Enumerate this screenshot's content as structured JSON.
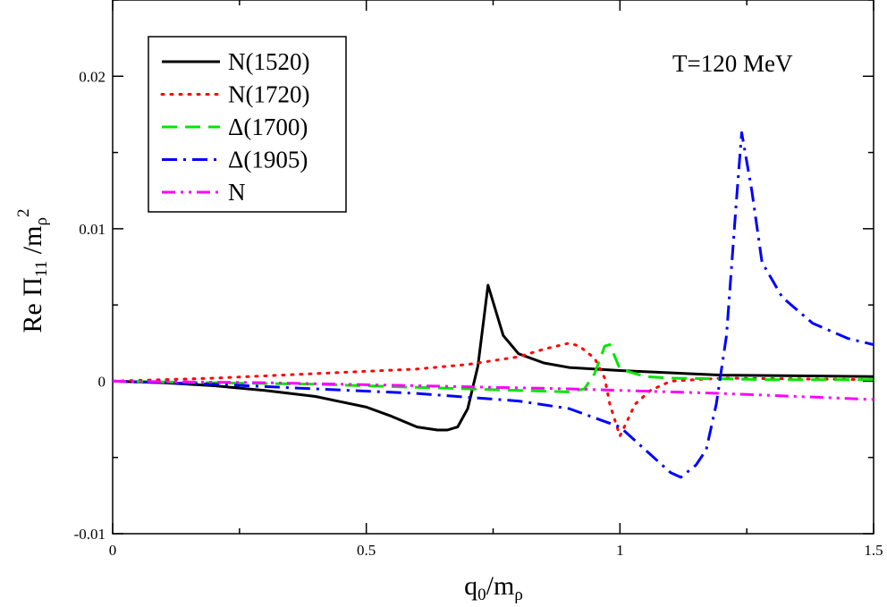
{
  "chart_data": {
    "type": "line",
    "title": "",
    "annotation": "T=120 MeV",
    "xlabel": {
      "base": "q",
      "sub1": "0",
      "mid": "/m",
      "sub2": "ρ"
    },
    "ylabel": {
      "base": "Re Π",
      "sub1": "11",
      "mid": " /m",
      "sub2": "ρ",
      "sup": "2"
    },
    "xlim": [
      0,
      1.5
    ],
    "ylim": [
      -0.01,
      0.025
    ],
    "x_ticks": [
      0,
      0.5,
      1,
      1.5
    ],
    "x_tick_labels": [
      "0",
      "0.5",
      "1",
      "1.5"
    ],
    "y_ticks": [
      -0.01,
      0,
      0.01,
      0.02
    ],
    "y_tick_labels": [
      "-0.01",
      "0",
      "0.01",
      "0.02"
    ],
    "legend_position": "top-left",
    "series": [
      {
        "name": "N(1520)",
        "color": "#000000",
        "dash": "solid",
        "points": [
          [
            0,
            0
          ],
          [
            0.1,
            -0.0001
          ],
          [
            0.2,
            -0.0003
          ],
          [
            0.3,
            -0.0006
          ],
          [
            0.4,
            -0.001
          ],
          [
            0.5,
            -0.0017
          ],
          [
            0.55,
            -0.0023
          ],
          [
            0.6,
            -0.003
          ],
          [
            0.64,
            -0.0032
          ],
          [
            0.66,
            -0.0032
          ],
          [
            0.68,
            -0.003
          ],
          [
            0.7,
            -0.0018
          ],
          [
            0.72,
            0.001
          ],
          [
            0.74,
            0.0063
          ],
          [
            0.77,
            0.003
          ],
          [
            0.8,
            0.0018
          ],
          [
            0.85,
            0.0012
          ],
          [
            0.9,
            0.0009
          ],
          [
            1.0,
            0.0007
          ],
          [
            1.2,
            0.0004
          ],
          [
            1.5,
            0.0003
          ]
        ]
      },
      {
        "name": "N(1720)",
        "color": "#ff0000",
        "dash": "dotted",
        "points": [
          [
            0,
            0
          ],
          [
            0.2,
            0.0002
          ],
          [
            0.4,
            0.0005
          ],
          [
            0.6,
            0.0008
          ],
          [
            0.7,
            0.0011
          ],
          [
            0.8,
            0.0016
          ],
          [
            0.85,
            0.0021
          ],
          [
            0.9,
            0.0025
          ],
          [
            0.92,
            0.0023
          ],
          [
            0.95,
            0.0015
          ],
          [
            0.97,
            0.0002
          ],
          [
            0.98,
            -0.0015
          ],
          [
            1.0,
            -0.0036
          ],
          [
            1.03,
            -0.0015
          ],
          [
            1.06,
            -0.0006
          ],
          [
            1.1,
            0.0
          ],
          [
            1.2,
            0.0002
          ],
          [
            1.5,
            0.0001
          ]
        ]
      },
      {
        "name": "Δ(1700)",
        "color": "#00e600",
        "dash": "dashed",
        "points": [
          [
            0,
            0
          ],
          [
            0.2,
            -0.0001
          ],
          [
            0.4,
            -0.0002
          ],
          [
            0.6,
            -0.0004
          ],
          [
            0.7,
            -0.0005
          ],
          [
            0.8,
            -0.0006
          ],
          [
            0.9,
            -0.0007
          ],
          [
            0.93,
            -0.0005
          ],
          [
            0.95,
            0.0005
          ],
          [
            0.97,
            0.0023
          ],
          [
            0.98,
            0.0024
          ],
          [
            1.0,
            0.0008
          ],
          [
            1.05,
            0.0003
          ],
          [
            1.1,
            0.0002
          ],
          [
            1.3,
            0.0001
          ],
          [
            1.5,
            0.0001
          ]
        ]
      },
      {
        "name": "Δ(1905)",
        "color": "#0000ff",
        "dash": "dash-dot",
        "points": [
          [
            0,
            0
          ],
          [
            0.2,
            -0.0002
          ],
          [
            0.4,
            -0.0005
          ],
          [
            0.6,
            -0.0008
          ],
          [
            0.8,
            -0.0013
          ],
          [
            0.9,
            -0.0018
          ],
          [
            1.0,
            -0.003
          ],
          [
            1.05,
            -0.0045
          ],
          [
            1.1,
            -0.006
          ],
          [
            1.12,
            -0.0063
          ],
          [
            1.15,
            -0.0055
          ],
          [
            1.17,
            -0.0045
          ],
          [
            1.19,
            -0.0015
          ],
          [
            1.21,
            0.003
          ],
          [
            1.23,
            0.012
          ],
          [
            1.24,
            0.0163
          ],
          [
            1.26,
            0.0125
          ],
          [
            1.28,
            0.0078
          ],
          [
            1.32,
            0.0055
          ],
          [
            1.38,
            0.0038
          ],
          [
            1.45,
            0.0028
          ],
          [
            1.5,
            0.0024
          ]
        ]
      },
      {
        "name": "N",
        "color": "#ff00ff",
        "dash": "dash-dot-dot",
        "points": [
          [
            0,
            0
          ],
          [
            0.3,
            -0.0001
          ],
          [
            0.6,
            -0.0003
          ],
          [
            0.9,
            -0.0005
          ],
          [
            1.2,
            -0.0008
          ],
          [
            1.5,
            -0.0012
          ]
        ]
      }
    ]
  }
}
